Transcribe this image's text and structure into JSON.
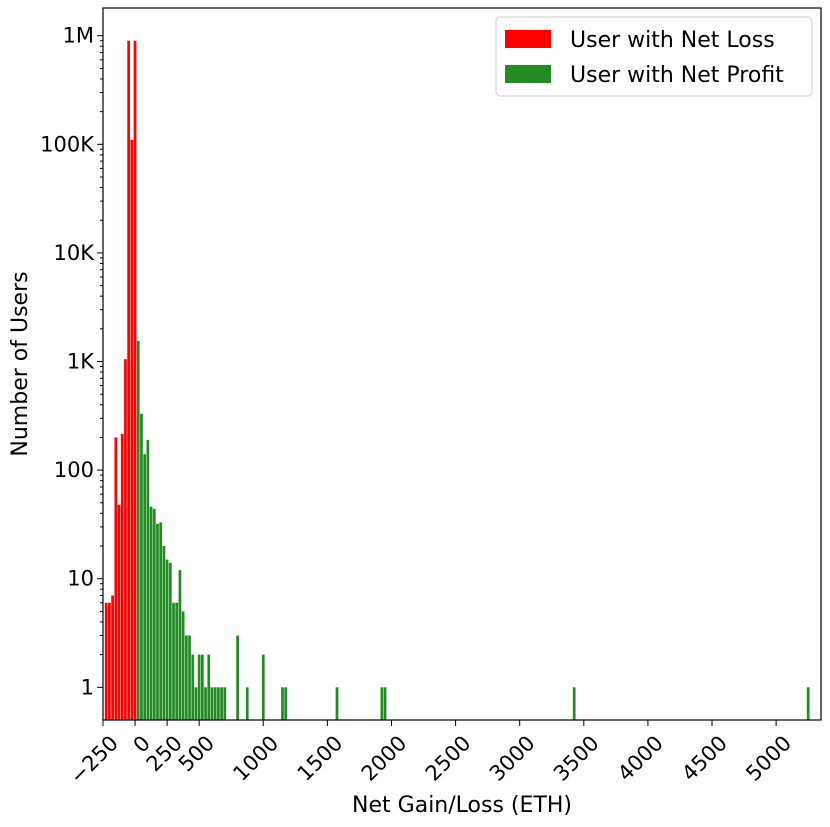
{
  "chart_data": {
    "type": "bar",
    "title": "",
    "xlabel": "Net Gain/Loss (ETH)",
    "ylabel": "Number of Users",
    "xlim": [
      -250,
      5350
    ],
    "ylim": [
      0.5,
      1800000
    ],
    "yscale": "log",
    "grid": false,
    "legend_position": "top-right",
    "bin_width": 25,
    "x_ticks": [
      -250,
      0,
      250,
      500,
      1000,
      1500,
      2000,
      2500,
      3000,
      3500,
      4000,
      4500,
      5000
    ],
    "x_tick_labels": [
      "−250",
      "0",
      "250",
      "500",
      "1000",
      "1500",
      "2000",
      "2500",
      "3000",
      "3500",
      "4000",
      "4500",
      "5000"
    ],
    "y_ticks": [
      1,
      10,
      100,
      1000,
      10000,
      100000,
      1000000
    ],
    "y_tick_labels": [
      "1",
      "10",
      "100",
      "1K",
      "10K",
      "100K",
      "1M"
    ],
    "series": [
      {
        "name": "User with Net Loss",
        "color": "#ff0000",
        "x": [
          -225,
          -200,
          -175,
          -150,
          -125,
          -100,
          -75,
          -50,
          -25,
          0
        ],
        "values": [
          6,
          6,
          7,
          200,
          48,
          215,
          1050,
          900000,
          110000,
          900000
        ]
      },
      {
        "name": "User with Net Profit",
        "color": "#228b22",
        "x": [
          25,
          50,
          75,
          100,
          125,
          150,
          175,
          200,
          225,
          250,
          275,
          300,
          325,
          350,
          375,
          400,
          425,
          450,
          475,
          500,
          525,
          550,
          575,
          600,
          625,
          650,
          675,
          700,
          800,
          875,
          1000,
          1150,
          1175,
          1575,
          1925,
          1950,
          3425,
          5250
        ],
        "values": [
          1550,
          330,
          140,
          190,
          46,
          44,
          32,
          33,
          20,
          15,
          14,
          6,
          6,
          12,
          5,
          3,
          3,
          2,
          1,
          2,
          2,
          1,
          2,
          1,
          1,
          1,
          1,
          1,
          3,
          1,
          2,
          1,
          1,
          1,
          1,
          1,
          1,
          1
        ]
      }
    ]
  }
}
